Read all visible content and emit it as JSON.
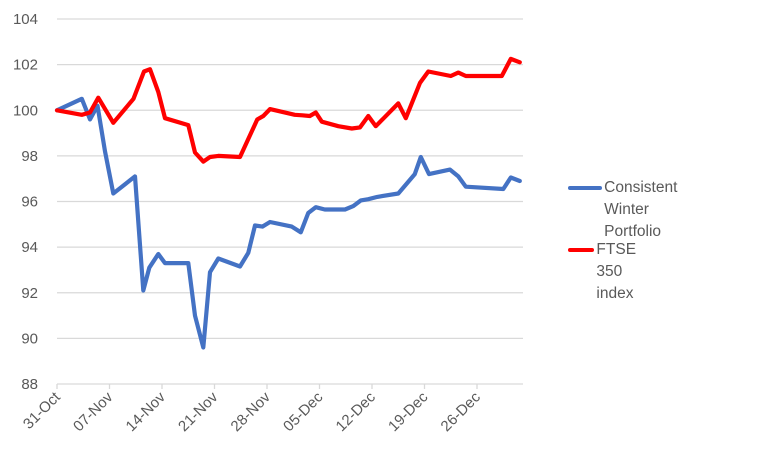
{
  "chart_data": {
    "type": "line",
    "title": "",
    "xlabel": "",
    "ylabel": "",
    "ylim": [
      88,
      104
    ],
    "yticks": [
      88,
      90,
      92,
      94,
      96,
      98,
      100,
      102,
      104
    ],
    "x_tick_labels": [
      "31-Oct",
      "07-Nov",
      "14-Nov",
      "21-Nov",
      "28-Nov",
      "05-Dec",
      "12-Dec",
      "19-Dec",
      "26-Dec"
    ],
    "grid": true,
    "legend_position": "right",
    "series": [
      {
        "name": "Consistent Winter Portfolio",
        "color": "#4472C4",
        "points": [
          {
            "day": 0,
            "value": 100.0
          },
          {
            "day": 3.3,
            "value": 100.5
          },
          {
            "day": 4.4,
            "value": 99.6
          },
          {
            "day": 5.4,
            "value": 100.2
          },
          {
            "day": 6.4,
            "value": 98.2
          },
          {
            "day": 7.5,
            "value": 96.35
          },
          {
            "day": 10.4,
            "value": 97.1
          },
          {
            "day": 11.5,
            "value": 92.1
          },
          {
            "day": 12.3,
            "value": 93.1
          },
          {
            "day": 13.5,
            "value": 93.7
          },
          {
            "day": 14.4,
            "value": 93.3
          },
          {
            "day": 17.5,
            "value": 93.3
          },
          {
            "day": 18.4,
            "value": 91.0
          },
          {
            "day": 19.5,
            "value": 89.6
          },
          {
            "day": 20.4,
            "value": 92.9
          },
          {
            "day": 21.5,
            "value": 93.5
          },
          {
            "day": 24.4,
            "value": 93.15
          },
          {
            "day": 25.5,
            "value": 93.75
          },
          {
            "day": 26.4,
            "value": 94.95
          },
          {
            "day": 27.4,
            "value": 94.9
          },
          {
            "day": 28.4,
            "value": 95.1
          },
          {
            "day": 31.3,
            "value": 94.9
          },
          {
            "day": 32.5,
            "value": 94.65
          },
          {
            "day": 33.5,
            "value": 95.5
          },
          {
            "day": 34.5,
            "value": 95.75
          },
          {
            "day": 35.7,
            "value": 95.65
          },
          {
            "day": 38.4,
            "value": 95.65
          },
          {
            "day": 39.5,
            "value": 95.8
          },
          {
            "day": 40.5,
            "value": 96.05
          },
          {
            "day": 41.5,
            "value": 96.1
          },
          {
            "day": 42.7,
            "value": 96.2
          },
          {
            "day": 45.5,
            "value": 96.35
          },
          {
            "day": 46.8,
            "value": 96.85
          },
          {
            "day": 47.7,
            "value": 97.2
          },
          {
            "day": 48.5,
            "value": 97.95
          },
          {
            "day": 49.6,
            "value": 97.2
          },
          {
            "day": 52.4,
            "value": 97.4
          },
          {
            "day": 53.5,
            "value": 97.1
          },
          {
            "day": 54.5,
            "value": 96.65
          },
          {
            "day": 59.5,
            "value": 96.55
          },
          {
            "day": 60.5,
            "value": 97.05
          },
          {
            "day": 61.7,
            "value": 96.9
          }
        ]
      },
      {
        "name": "FTSE 350 index",
        "color": "#FF0000",
        "points": [
          {
            "day": 0,
            "value": 100.0
          },
          {
            "day": 3.3,
            "value": 99.8
          },
          {
            "day": 4.4,
            "value": 99.9
          },
          {
            "day": 5.5,
            "value": 100.55
          },
          {
            "day": 7.5,
            "value": 99.45
          },
          {
            "day": 10.2,
            "value": 100.5
          },
          {
            "day": 11.6,
            "value": 101.7
          },
          {
            "day": 12.4,
            "value": 101.8
          },
          {
            "day": 13.5,
            "value": 100.8
          },
          {
            "day": 14.4,
            "value": 99.65
          },
          {
            "day": 17.5,
            "value": 99.35
          },
          {
            "day": 18.4,
            "value": 98.15
          },
          {
            "day": 19.5,
            "value": 97.75
          },
          {
            "day": 20.4,
            "value": 97.95
          },
          {
            "day": 21.5,
            "value": 98.0
          },
          {
            "day": 24.4,
            "value": 97.95
          },
          {
            "day": 26.7,
            "value": 99.6
          },
          {
            "day": 27.5,
            "value": 99.75
          },
          {
            "day": 28.4,
            "value": 100.05
          },
          {
            "day": 31.7,
            "value": 99.8
          },
          {
            "day": 32.7,
            "value": 99.78
          },
          {
            "day": 33.7,
            "value": 99.75
          },
          {
            "day": 34.5,
            "value": 99.9
          },
          {
            "day": 35.3,
            "value": 99.5
          },
          {
            "day": 37.5,
            "value": 99.3
          },
          {
            "day": 39.3,
            "value": 99.2
          },
          {
            "day": 40.4,
            "value": 99.25
          },
          {
            "day": 41.5,
            "value": 99.75
          },
          {
            "day": 42.5,
            "value": 99.3
          },
          {
            "day": 45.5,
            "value": 100.3
          },
          {
            "day": 46.5,
            "value": 99.65
          },
          {
            "day": 48.4,
            "value": 101.2
          },
          {
            "day": 49.5,
            "value": 101.7
          },
          {
            "day": 52.5,
            "value": 101.5
          },
          {
            "day": 53.5,
            "value": 101.65
          },
          {
            "day": 54.5,
            "value": 101.5
          },
          {
            "day": 59.3,
            "value": 101.5
          },
          {
            "day": 60.5,
            "value": 102.25
          },
          {
            "day": 61.7,
            "value": 102.1
          }
        ]
      }
    ]
  },
  "legend": {
    "items": [
      {
        "label_line1": "Consistent Winter",
        "label_line2": "Portfolio",
        "color": "#4472C4"
      },
      {
        "label_line1": "FTSE 350 index",
        "label_line2": "",
        "color": "#FF0000"
      }
    ]
  },
  "layout": {
    "gridline_color": "#D9D9D9",
    "axis_color": "#D9D9D9"
  }
}
